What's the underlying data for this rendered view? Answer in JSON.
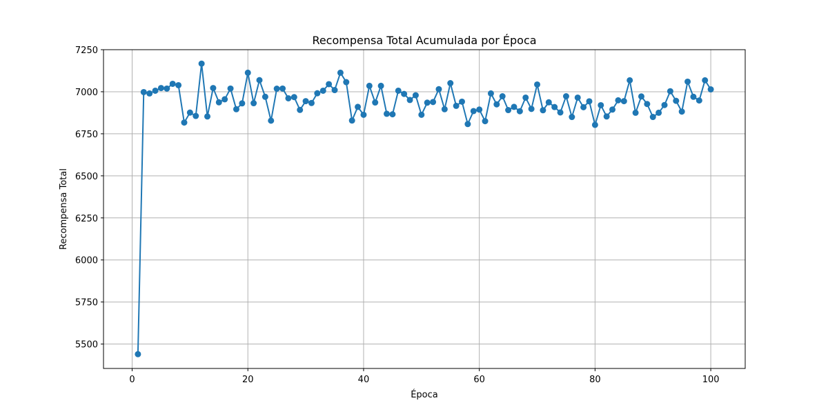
{
  "chart_data": {
    "type": "line",
    "title": "Recompensa Total Acumulada por Época",
    "xlabel": "Época",
    "ylabel": "Recompensa Total",
    "xlim": [
      -4.95,
      105.95
    ],
    "ylim": [
      5355,
      7250
    ],
    "xticks": [
      0,
      20,
      40,
      60,
      80,
      100
    ],
    "yticks": [
      5500,
      5750,
      6000,
      6250,
      6500,
      6750,
      7000,
      7250
    ],
    "grid": true,
    "marker": "circle",
    "color": "#1f77b4",
    "series": [
      {
        "x": [
          1,
          2,
          3,
          4,
          5,
          6,
          7,
          8,
          9,
          10,
          11,
          12,
          13,
          14,
          15,
          16,
          17,
          18,
          19,
          20,
          21,
          22,
          23,
          24,
          25,
          26,
          27,
          28,
          29,
          30,
          31,
          32,
          33,
          34,
          35,
          36,
          37,
          38,
          39,
          40,
          41,
          42,
          43,
          44,
          45,
          46,
          47,
          48,
          49,
          50,
          51,
          52,
          53,
          54,
          55,
          56,
          57,
          58,
          59,
          60,
          61,
          62,
          63,
          64,
          65,
          66,
          67,
          68,
          69,
          70,
          71,
          72,
          73,
          74,
          75,
          76,
          77,
          78,
          79,
          80,
          81,
          82,
          83,
          84,
          85,
          86,
          87,
          88,
          89,
          90,
          91,
          92,
          93,
          94,
          95,
          96,
          97,
          98,
          99,
          100
        ],
        "values": [
          5440,
          6998,
          6990,
          7006,
          7022,
          7019,
          7047,
          7039,
          6817,
          6876,
          6856,
          7167,
          6853,
          7022,
          6937,
          6955,
          7019,
          6896,
          6931,
          7113,
          6932,
          7069,
          6970,
          6828,
          7018,
          7019,
          6961,
          6968,
          6892,
          6944,
          6933,
          6991,
          7006,
          7045,
          7010,
          7113,
          7057,
          6829,
          6910,
          6863,
          7035,
          6936,
          7035,
          6869,
          6866,
          7006,
          6987,
          6951,
          6979,
          6863,
          6935,
          6939,
          7015,
          6896,
          7051,
          6916,
          6941,
          6808,
          6885,
          6894,
          6825,
          6990,
          6925,
          6973,
          6891,
          6910,
          6884,
          6965,
          6898,
          7043,
          6890,
          6937,
          6909,
          6877,
          6973,
          6850,
          6965,
          6908,
          6943,
          6803,
          6920,
          6853,
          6894,
          6949,
          6944,
          7068,
          6875,
          6972,
          6927,
          6850,
          6875,
          6921,
          7003,
          6946,
          6882,
          7060,
          6970,
          6948,
          7068,
          7014
        ]
      }
    ]
  }
}
